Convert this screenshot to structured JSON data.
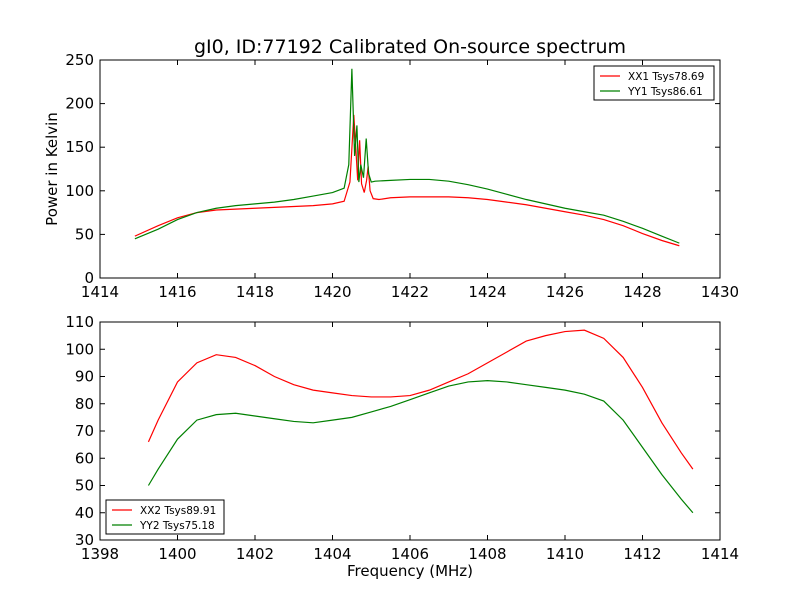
{
  "chart_data": [
    {
      "type": "line",
      "title": "gI0, ID:77192 Calibrated On-source spectrum",
      "xlabel": "",
      "ylabel": "Power in Kelvin",
      "xlim": [
        1414,
        1430
      ],
      "ylim": [
        0,
        250
      ],
      "xticks": [
        "1414",
        "1416",
        "1418",
        "1420",
        "1422",
        "1424",
        "1426",
        "1428",
        "1430"
      ],
      "yticks": [
        "0",
        "50",
        "100",
        "150",
        "200",
        "250"
      ],
      "legend_position": "top-right",
      "series": [
        {
          "name": "XX1 Tsys78.69",
          "color": "#ff0000",
          "x": [
            1414.9,
            1415.5,
            1416.0,
            1416.5,
            1417.0,
            1417.5,
            1418.0,
            1418.5,
            1419.0,
            1419.5,
            1420.0,
            1420.3,
            1420.45,
            1420.55,
            1420.6,
            1420.65,
            1420.7,
            1420.75,
            1420.82,
            1420.88,
            1420.92,
            1420.97,
            1421.05,
            1421.2,
            1421.5,
            1422.0,
            1422.5,
            1423.0,
            1423.5,
            1424.0,
            1424.5,
            1425.0,
            1425.5,
            1426.0,
            1426.5,
            1427.0,
            1427.5,
            1428.0,
            1428.5,
            1428.95
          ],
          "y": [
            48,
            60,
            69,
            75,
            78,
            79,
            80,
            81,
            82,
            83,
            85,
            88,
            110,
            187,
            150,
            112,
            158,
            108,
            98,
            112,
            128,
            100,
            91,
            90,
            92,
            93,
            93,
            93,
            92,
            90,
            87,
            84,
            80,
            76,
            72,
            67,
            60,
            51,
            43,
            37
          ]
        },
        {
          "name": "YY1 Tsys86.61",
          "color": "#008000",
          "x": [
            1414.9,
            1415.5,
            1416.0,
            1416.5,
            1417.0,
            1417.5,
            1418.0,
            1418.5,
            1419.0,
            1419.5,
            1420.0,
            1420.3,
            1420.42,
            1420.5,
            1420.57,
            1420.63,
            1420.68,
            1420.73,
            1420.8,
            1420.87,
            1420.93,
            1421.0,
            1421.1,
            1421.5,
            1422.0,
            1422.5,
            1423.0,
            1423.5,
            1424.0,
            1424.5,
            1425.0,
            1425.5,
            1426.0,
            1426.5,
            1427.0,
            1427.5,
            1428.0,
            1428.5,
            1428.95
          ],
          "y": [
            45,
            56,
            67,
            75,
            80,
            83,
            85,
            87,
            90,
            94,
            98,
            103,
            130,
            240,
            140,
            175,
            110,
            130,
            115,
            160,
            120,
            110,
            111,
            112,
            113,
            113,
            111,
            107,
            102,
            96,
            90,
            85,
            80,
            76,
            72,
            65,
            57,
            48,
            40
          ]
        }
      ]
    },
    {
      "type": "line",
      "title": "",
      "xlabel": "Frequency (MHz)",
      "ylabel": "",
      "xlim": [
        1398,
        1414
      ],
      "ylim": [
        30,
        110
      ],
      "xticks": [
        "1398",
        "1400",
        "1402",
        "1404",
        "1406",
        "1408",
        "1410",
        "1412",
        "1414"
      ],
      "yticks": [
        "30",
        "40",
        "50",
        "60",
        "70",
        "80",
        "90",
        "100",
        "110"
      ],
      "legend_position": "bottom-left",
      "series": [
        {
          "name": "XX2 Tsys89.91",
          "color": "#ff0000",
          "x": [
            1399.25,
            1399.5,
            1400.0,
            1400.5,
            1401.0,
            1401.5,
            1402.0,
            1402.5,
            1403.0,
            1403.5,
            1404.0,
            1404.5,
            1405.0,
            1405.5,
            1406.0,
            1406.5,
            1407.0,
            1407.5,
            1408.0,
            1408.5,
            1409.0,
            1409.5,
            1410.0,
            1410.5,
            1411.0,
            1411.5,
            1412.0,
            1412.5,
            1413.0,
            1413.3
          ],
          "y": [
            66,
            74,
            88,
            95,
            98,
            97,
            94,
            90,
            87,
            85,
            84,
            83,
            82.5,
            82.5,
            83,
            85,
            88,
            91,
            95,
            99,
            103,
            105,
            106.5,
            107,
            104,
            97,
            86,
            73,
            62,
            56
          ]
        },
        {
          "name": "YY2 Tsys75.18",
          "color": "#008000",
          "x": [
            1399.25,
            1399.5,
            1400.0,
            1400.5,
            1401.0,
            1401.5,
            1402.0,
            1402.5,
            1403.0,
            1403.5,
            1404.0,
            1404.5,
            1405.0,
            1405.5,
            1406.0,
            1406.5,
            1407.0,
            1407.5,
            1408.0,
            1408.5,
            1409.0,
            1409.5,
            1410.0,
            1410.5,
            1411.0,
            1411.5,
            1412.0,
            1412.5,
            1413.0,
            1413.3
          ],
          "y": [
            50,
            56,
            67,
            74,
            76,
            76.5,
            75.5,
            74.5,
            73.5,
            73,
            74,
            75,
            77,
            79,
            81.5,
            84,
            86.5,
            88,
            88.5,
            88,
            87,
            86,
            85,
            83.5,
            81,
            74,
            64,
            54,
            45,
            40
          ]
        }
      ]
    }
  ]
}
